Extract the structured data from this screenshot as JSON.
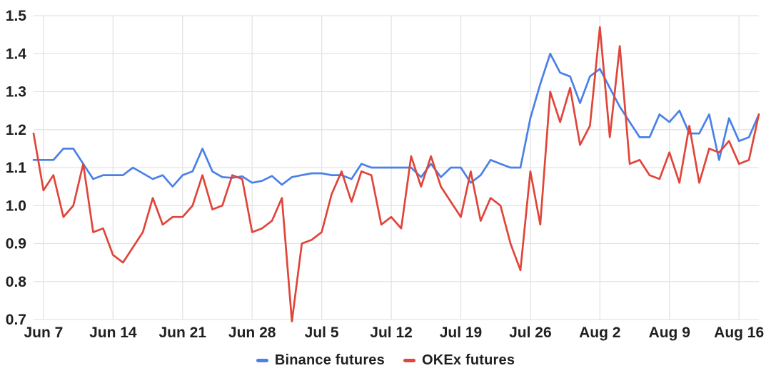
{
  "chart_data": {
    "type": "line",
    "title": "",
    "xlabel": "",
    "ylabel": "",
    "ylim": [
      0.7,
      1.5
    ],
    "grid": true,
    "legend_position": "bottom",
    "colors": {
      "grid": "#e3e3e3",
      "tick_text": "#1f1f1f",
      "background": "#ffffff"
    },
    "y_ticks": [
      {
        "value": 1.5,
        "label": "1.5"
      },
      {
        "value": 1.4,
        "label": "1.4"
      },
      {
        "value": 1.3,
        "label": "1.3"
      },
      {
        "value": 1.2,
        "label": "1.2"
      },
      {
        "value": 1.1,
        "label": "1.1"
      },
      {
        "value": 1.0,
        "label": "1.0"
      },
      {
        "value": 0.9,
        "label": "0.9"
      },
      {
        "value": 0.8,
        "label": "0.8"
      },
      {
        "value": 0.7,
        "label": "0.7"
      }
    ],
    "x_ticks": [
      {
        "index": 1,
        "label": "Jun 7"
      },
      {
        "index": 8,
        "label": "Jun 14"
      },
      {
        "index": 15,
        "label": "Jun 21"
      },
      {
        "index": 22,
        "label": "Jun 28"
      },
      {
        "index": 29,
        "label": "Jul 5"
      },
      {
        "index": 36,
        "label": "Jul 12"
      },
      {
        "index": 43,
        "label": "Jul 19"
      },
      {
        "index": 50,
        "label": "Jul 26"
      },
      {
        "index": 57,
        "label": "Aug 2"
      },
      {
        "index": 64,
        "label": "Aug 9"
      },
      {
        "index": 71,
        "label": "Aug 16"
      }
    ],
    "x_dates": [
      "Jun 6",
      "Jun 7",
      "Jun 8",
      "Jun 9",
      "Jun 10",
      "Jun 11",
      "Jun 12",
      "Jun 13",
      "Jun 14",
      "Jun 15",
      "Jun 16",
      "Jun 17",
      "Jun 18",
      "Jun 19",
      "Jun 20",
      "Jun 21",
      "Jun 22",
      "Jun 23",
      "Jun 24",
      "Jun 25",
      "Jun 26",
      "Jun 27",
      "Jun 28",
      "Jun 29",
      "Jun 30",
      "Jul 1",
      "Jul 2",
      "Jul 3",
      "Jul 4",
      "Jul 5",
      "Jul 6",
      "Jul 7",
      "Jul 8",
      "Jul 9",
      "Jul 10",
      "Jul 11",
      "Jul 12",
      "Jul 13",
      "Jul 14",
      "Jul 15",
      "Jul 16",
      "Jul 17",
      "Jul 18",
      "Jul 19",
      "Jul 20",
      "Jul 21",
      "Jul 22",
      "Jul 23",
      "Jul 24",
      "Jul 25",
      "Jul 26",
      "Jul 27",
      "Jul 28",
      "Jul 29",
      "Jul 30",
      "Jul 31",
      "Aug 1",
      "Aug 2",
      "Aug 3",
      "Aug 4",
      "Aug 5",
      "Aug 6",
      "Aug 7",
      "Aug 8",
      "Aug 9",
      "Aug 10",
      "Aug 11",
      "Aug 12",
      "Aug 13",
      "Aug 14",
      "Aug 15",
      "Aug 16",
      "Aug 17",
      "Aug 18"
    ],
    "series": [
      {
        "id": "binance-futures",
        "name": "Binance futures",
        "color": "#4a80e8",
        "values": [
          1.12,
          1.12,
          1.12,
          1.15,
          1.15,
          1.11,
          1.07,
          1.08,
          1.08,
          1.08,
          1.1,
          1.085,
          1.07,
          1.08,
          1.05,
          1.08,
          1.09,
          1.15,
          1.09,
          1.075,
          1.073,
          1.077,
          1.06,
          1.065,
          1.078,
          1.055,
          1.075,
          1.08,
          1.085,
          1.085,
          1.08,
          1.08,
          1.07,
          1.11,
          1.1,
          1.1,
          1.1,
          1.1,
          1.1,
          1.075,
          1.11,
          1.075,
          1.1,
          1.1,
          1.06,
          1.08,
          1.12,
          1.11,
          1.1,
          1.1,
          1.23,
          1.32,
          1.4,
          1.35,
          1.34,
          1.27,
          1.34,
          1.36,
          1.31,
          1.26,
          1.22,
          1.18,
          1.18,
          1.24,
          1.22,
          1.25,
          1.19,
          1.19,
          1.24,
          1.12,
          1.23,
          1.17,
          1.18,
          1.24
        ]
      },
      {
        "id": "okex-futures",
        "name": "OKEx futures",
        "color": "#e0453a",
        "values": [
          1.19,
          1.04,
          1.08,
          0.97,
          1.0,
          1.11,
          0.93,
          0.94,
          0.87,
          0.85,
          0.89,
          0.93,
          1.02,
          0.95,
          0.97,
          0.97,
          1.0,
          1.08,
          0.99,
          1.0,
          1.08,
          1.07,
          0.93,
          0.94,
          0.96,
          1.02,
          0.695,
          0.9,
          0.91,
          0.93,
          1.03,
          1.09,
          1.01,
          1.09,
          1.08,
          0.95,
          0.97,
          0.94,
          1.13,
          1.05,
          1.13,
          1.05,
          1.01,
          0.97,
          1.09,
          0.96,
          1.02,
          1.0,
          0.9,
          0.83,
          1.09,
          0.95,
          1.3,
          1.22,
          1.31,
          1.16,
          1.21,
          1.47,
          1.18,
          1.42,
          1.11,
          1.12,
          1.08,
          1.07,
          1.14,
          1.06,
          1.21,
          1.06,
          1.15,
          1.14,
          1.17,
          1.11,
          1.12,
          1.24
        ]
      }
    ]
  },
  "legend": {
    "items": [
      {
        "label": "Binance futures"
      },
      {
        "label": "OKEx futures"
      }
    ]
  }
}
